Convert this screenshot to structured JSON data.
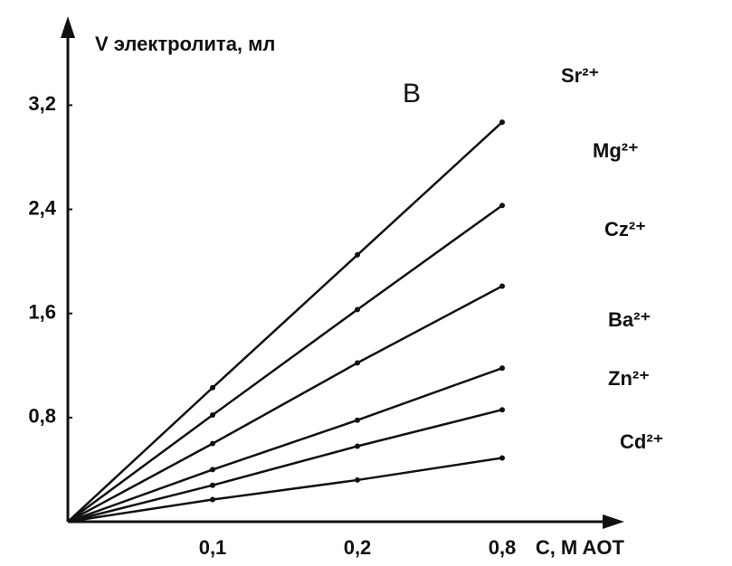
{
  "chart_data": {
    "type": "line",
    "annotation": "B",
    "y_label": "V электролита, мл",
    "x_label": "C, M AOT",
    "categories": [
      null,
      "0,1",
      "0,2",
      "0,8"
    ],
    "ylim": [
      0,
      3.8
    ],
    "yticks": [
      {
        "value": 0.8,
        "label": "0,8"
      },
      {
        "value": 1.6,
        "label": "1,6"
      },
      {
        "value": 2.4,
        "label": "2,4"
      },
      {
        "value": 3.2,
        "label": "3,2"
      }
    ],
    "series": [
      {
        "name": "Sr²⁺",
        "color": "#111111",
        "values": [
          0,
          1.03,
          2.05,
          3.07
        ]
      },
      {
        "name": "Mg²⁺",
        "color": "#111111",
        "values": [
          0,
          0.82,
          1.63,
          2.43
        ]
      },
      {
        "name": "Cz²⁺",
        "color": "#111111",
        "values": [
          0,
          0.6,
          1.22,
          1.81
        ]
      },
      {
        "name": "Ba²⁺",
        "color": "#111111",
        "values": [
          0,
          0.4,
          0.78,
          1.18
        ]
      },
      {
        "name": "Zn²⁺",
        "color": "#111111",
        "values": [
          0,
          0.28,
          0.58,
          0.86
        ]
      },
      {
        "name": "Cd²⁺",
        "color": "#111111",
        "values": [
          0,
          0.17,
          0.32,
          0.49
        ]
      }
    ]
  }
}
